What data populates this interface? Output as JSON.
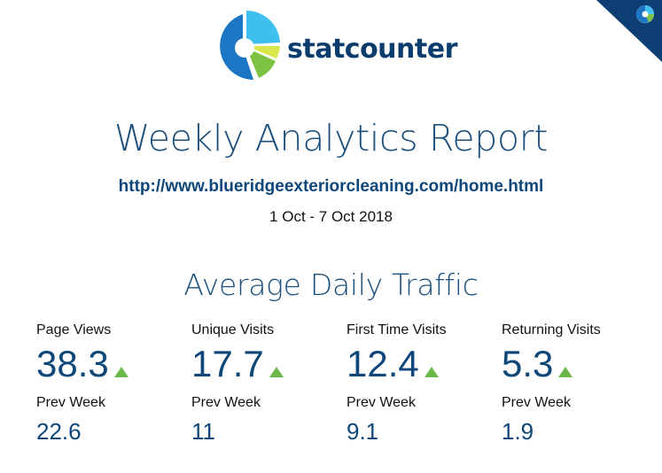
{
  "brand": {
    "name": "statcounter",
    "colors": {
      "primary": "#0d4679",
      "logo_blue": "#1b76c4",
      "logo_light_blue": "#3fbfef",
      "logo_green": "#7dc243",
      "logo_yellow": "#d8e84a",
      "trend_up": "#6ab84a"
    }
  },
  "report": {
    "title": "Weekly Analytics Report",
    "url": "http://www.blueridgeexteriorcleaning.com/home.html",
    "date_range": "1 Oct - 7 Oct 2018"
  },
  "traffic": {
    "section_title": "Average Daily Traffic",
    "metrics": [
      {
        "label": "Page Views",
        "value": "38.3",
        "trend": "up",
        "prev_label": "Prev Week",
        "prev_value": "22.6"
      },
      {
        "label": "Unique Visits",
        "value": "17.7",
        "trend": "up",
        "prev_label": "Prev Week",
        "prev_value": "11"
      },
      {
        "label": "First Time Visits",
        "value": "12.4",
        "trend": "up",
        "prev_label": "Prev Week",
        "prev_value": "9.1"
      },
      {
        "label": "Returning Visits",
        "value": "5.3",
        "trend": "up",
        "prev_label": "Prev Week",
        "prev_value": "1.9"
      }
    ]
  },
  "corner_badge": {
    "icon": "statcounter-corner-icon"
  }
}
